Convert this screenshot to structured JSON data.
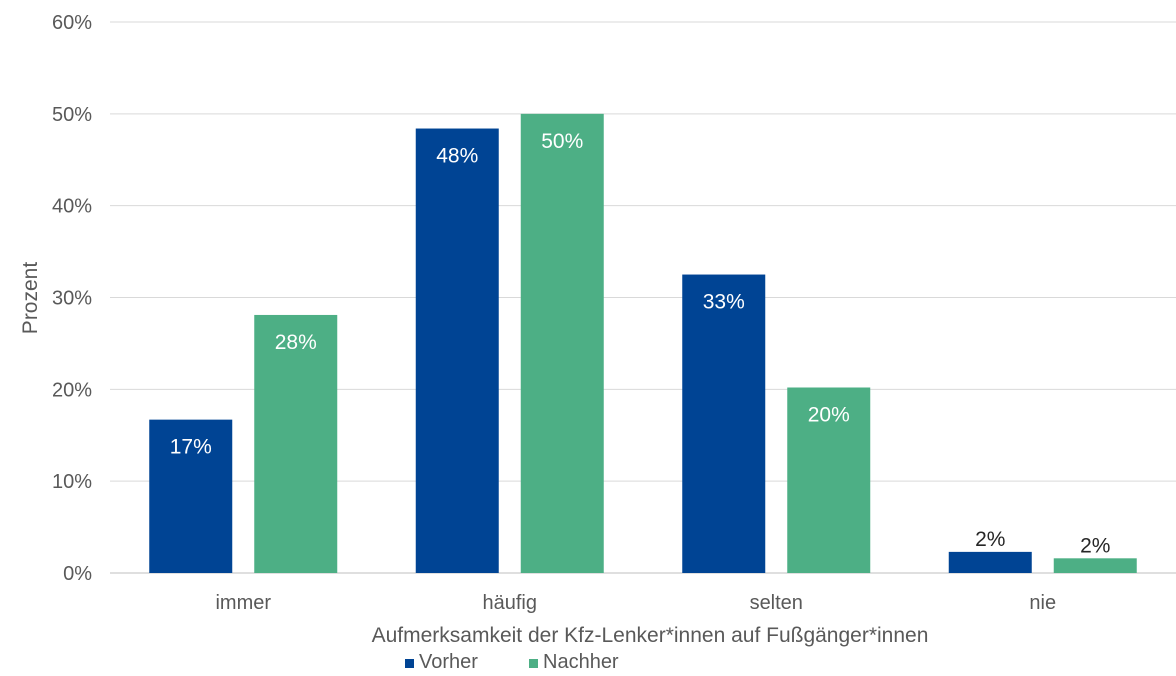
{
  "chart_data": {
    "type": "bar",
    "title": "",
    "xlabel": "Aufmerksamkeit der Kfz-Lenker*innen auf Fußgänger*innen",
    "ylabel": "Prozent",
    "categories": [
      "immer",
      "häufig",
      "selten",
      "nie"
    ],
    "series": [
      {
        "name": "Vorher",
        "values": [
          16.7,
          48.4,
          32.5,
          2.3
        ],
        "labels": [
          "17%",
          "48%",
          "33%",
          "2%"
        ],
        "color": "#004494"
      },
      {
        "name": "Nachher",
        "values": [
          28.1,
          50.0,
          20.2,
          1.6
        ],
        "labels": [
          "28%",
          "50%",
          "20%",
          "2%"
        ],
        "color": "#4daf85"
      }
    ],
    "ylim": [
      0,
      60
    ],
    "yticks": [
      "0%",
      "10%",
      "20%",
      "30%",
      "40%",
      "50%",
      "60%"
    ],
    "grid": true,
    "legend_position": "bottom"
  }
}
